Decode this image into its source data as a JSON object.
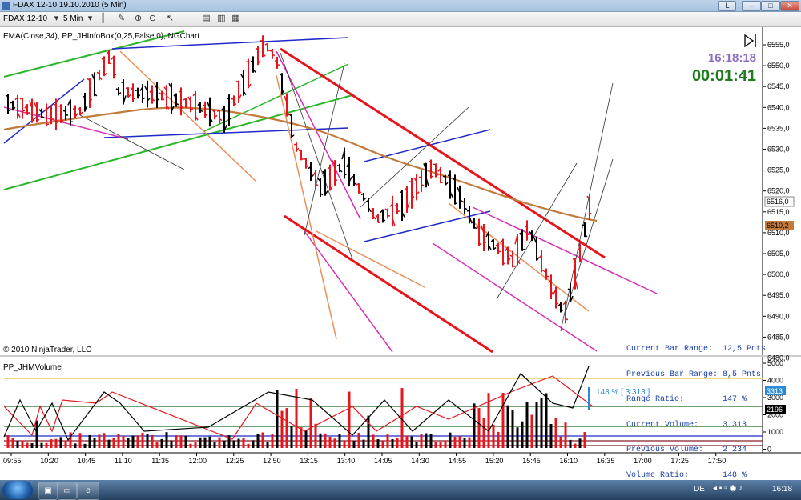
{
  "window": {
    "title": "FDAX 12-10  19.10.2010 (5 Min)"
  },
  "toolbar": {
    "instrument": "FDAX 12-10",
    "interval": "5 Min"
  },
  "chart": {
    "indicator_label": "EMA(Close,34), PP_JHInfoBox(0,25,False,0), NGChart",
    "copyright": "© 2010 NinjaTrader, LLC",
    "clock_time": "16:18:18",
    "countdown": "00:01:41",
    "price_ticks": [
      "6555,0",
      "6550,0",
      "6545,0",
      "6540,0",
      "6535,0",
      "6530,0",
      "6525,0",
      "6520,0",
      "6515,0",
      "6510,0",
      "6505,0",
      "6500,0",
      "6495,0",
      "6490,0",
      "6485,0",
      "6480,0"
    ],
    "price_last_label": "6516,0",
    "ema_label": "6510,2",
    "time_ticks": [
      "09:55",
      "10:20",
      "10:45",
      "11:10",
      "11:35",
      "12:00",
      "12:25",
      "12:50",
      "13:15",
      "13:40",
      "14:05",
      "14:30",
      "14:55",
      "15:20",
      "15:45",
      "16:10",
      "16:35",
      "17:00",
      "17:25",
      "17:50"
    ],
    "info_box": {
      "lines": [
        "Current Bar Range:  12,5 Pnts",
        "Previous Bar Range: 8,5 Pnts",
        "Range Ratio:        147 %",
        "Current Volume:     3 313",
        "Previous Volume:    2 234",
        "Volume Ratio:       148 %"
      ]
    }
  },
  "volume_panel": {
    "label": "PP_JHMVolume",
    "ticks": [
      "5000",
      "4000",
      "3000",
      "2000",
      "1000",
      "0"
    ],
    "current_label": "3313",
    "avg_label": "2196",
    "annotation": "148 % [ 3 313 ]"
  },
  "taskbar": {
    "lang": "DE",
    "time": "16:18"
  },
  "colors": {
    "up": "#000000",
    "down": "#e8141c",
    "ema": "#c27a3a",
    "info": "#1a3fa8",
    "clock": "#8a6fc2",
    "countdown": "#1d7a1d"
  }
}
